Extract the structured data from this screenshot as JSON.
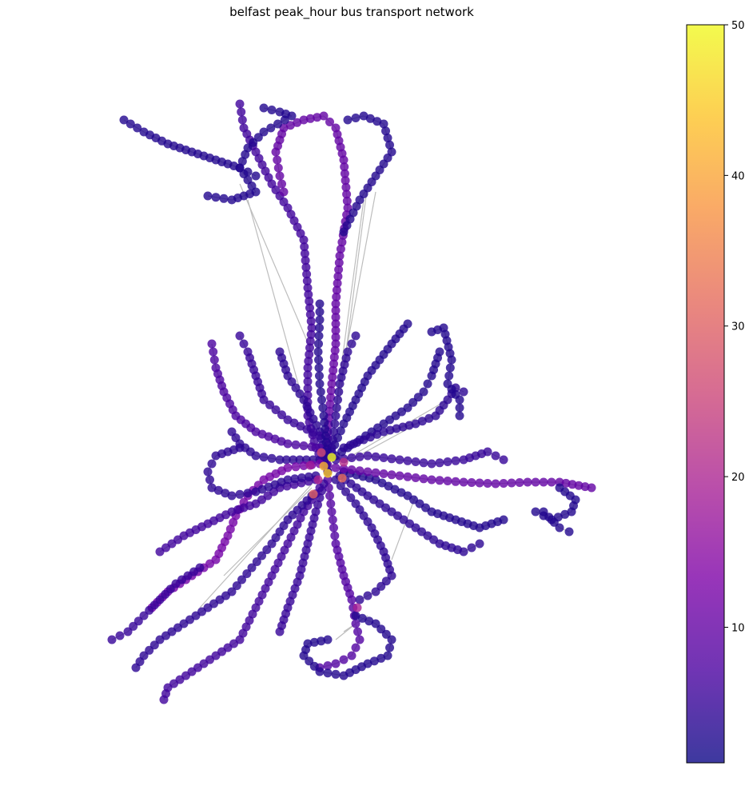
{
  "title": "belfast peak_hour bus transport network",
  "colorbar": {
    "colormap": "plasma",
    "min": 1,
    "max": 50,
    "ticks": [
      10,
      20,
      30,
      40,
      50
    ]
  },
  "network": {
    "node_opacity": 0.8,
    "edge_color": "#bdbdbd",
    "hub": {
      "x": 410,
      "y": 590
    },
    "routes": [
      {
        "id": "nw-branch",
        "level": 6,
        "points": [
          [
            410,
            590
          ],
          [
            395,
            560
          ],
          [
            385,
            520
          ],
          [
            385,
            460
          ],
          [
            390,
            410
          ],
          [
            385,
            360
          ],
          [
            380,
            300
          ],
          [
            360,
            260
          ],
          [
            340,
            230
          ],
          [
            320,
            190
          ],
          [
            305,
            160
          ],
          [
            300,
            130
          ]
        ]
      },
      {
        "id": "north-loop",
        "level": 10,
        "points": [
          [
            410,
            590
          ],
          [
            410,
            540
          ],
          [
            415,
            480
          ],
          [
            420,
            430
          ],
          [
            420,
            380
          ],
          [
            425,
            320
          ],
          [
            435,
            260
          ],
          [
            430,
            200
          ],
          [
            420,
            160
          ],
          [
            405,
            145
          ],
          [
            380,
            150
          ],
          [
            355,
            160
          ],
          [
            345,
            190
          ],
          [
            350,
            220
          ],
          [
            355,
            240
          ]
        ]
      },
      {
        "id": "far-nw",
        "level": 3,
        "points": [
          [
            320,
            220
          ],
          [
            300,
            210
          ],
          [
            270,
            200
          ],
          [
            240,
            190
          ],
          [
            210,
            180
          ],
          [
            180,
            165
          ],
          [
            155,
            150
          ]
        ]
      },
      {
        "id": "north-east-loop",
        "level": 3,
        "points": [
          [
            435,
            150
          ],
          [
            455,
            145
          ],
          [
            480,
            155
          ],
          [
            490,
            190
          ],
          [
            470,
            220
          ],
          [
            450,
            250
          ],
          [
            430,
            290
          ]
        ]
      },
      {
        "id": "north-west-loop2",
        "level": 3,
        "points": [
          [
            330,
            135
          ],
          [
            350,
            140
          ],
          [
            365,
            145
          ],
          [
            330,
            165
          ],
          [
            310,
            185
          ],
          [
            300,
            210
          ],
          [
            320,
            240
          ],
          [
            290,
            250
          ],
          [
            260,
            245
          ]
        ]
      },
      {
        "id": "central-north",
        "level": 4,
        "points": [
          [
            410,
            590
          ],
          [
            400,
            540
          ],
          [
            380,
            500
          ],
          [
            360,
            470
          ],
          [
            350,
            440
          ]
        ]
      },
      {
        "id": "west-north",
        "level": 7,
        "points": [
          [
            400,
            560
          ],
          [
            360,
            555
          ],
          [
            320,
            540
          ],
          [
            295,
            520
          ],
          [
            280,
            490
          ],
          [
            270,
            460
          ],
          [
            265,
            430
          ]
        ]
      },
      {
        "id": "west-north2",
        "level": 5,
        "points": [
          [
            400,
            545
          ],
          [
            360,
            525
          ],
          [
            330,
            500
          ],
          [
            320,
            470
          ],
          [
            310,
            440
          ],
          [
            300,
            420
          ]
        ]
      },
      {
        "id": "wnw",
        "level": 4,
        "points": [
          [
            400,
            575
          ],
          [
            350,
            575
          ],
          [
            320,
            570
          ],
          [
            300,
            555
          ],
          [
            290,
            540
          ]
        ]
      },
      {
        "id": "west-main",
        "level": 12,
        "points": [
          [
            400,
            580
          ],
          [
            360,
            585
          ],
          [
            330,
            600
          ],
          [
            310,
            620
          ],
          [
            295,
            645
          ],
          [
            285,
            670
          ],
          [
            270,
            700
          ],
          [
            240,
            720
          ],
          [
            210,
            740
          ],
          [
            190,
            760
          ]
        ]
      },
      {
        "id": "wsw",
        "level": 6,
        "points": [
          [
            395,
            600
          ],
          [
            350,
            610
          ],
          [
            320,
            630
          ],
          [
            290,
            640
          ],
          [
            260,
            655
          ],
          [
            230,
            670
          ],
          [
            200,
            690
          ]
        ]
      },
      {
        "id": "west-south",
        "level": 4,
        "points": [
          [
            395,
            595
          ],
          [
            360,
            600
          ],
          [
            320,
            615
          ],
          [
            290,
            620
          ],
          [
            265,
            610
          ],
          [
            260,
            590
          ],
          [
            270,
            570
          ],
          [
            300,
            560
          ]
        ]
      },
      {
        "id": "sw-main",
        "level": 6,
        "points": [
          [
            400,
            610
          ],
          [
            380,
            640
          ],
          [
            360,
            680
          ],
          [
            340,
            720
          ],
          [
            320,
            760
          ],
          [
            300,
            800
          ],
          [
            270,
            820
          ],
          [
            240,
            840
          ],
          [
            210,
            860
          ],
          [
            205,
            875
          ]
        ]
      },
      {
        "id": "sw-2",
        "level": 4,
        "points": [
          [
            390,
            620
          ],
          [
            360,
            650
          ],
          [
            340,
            680
          ],
          [
            315,
            710
          ],
          [
            290,
            740
          ],
          [
            260,
            760
          ],
          [
            230,
            780
          ],
          [
            200,
            800
          ],
          [
            180,
            820
          ],
          [
            170,
            835
          ]
        ]
      },
      {
        "id": "far-sw",
        "level": 5,
        "points": [
          [
            250,
            710
          ],
          [
            220,
            730
          ],
          [
            200,
            750
          ],
          [
            180,
            770
          ],
          [
            160,
            790
          ],
          [
            140,
            800
          ]
        ]
      },
      {
        "id": "south-main",
        "level": 8,
        "points": [
          [
            410,
            600
          ],
          [
            415,
            640
          ],
          [
            420,
            680
          ],
          [
            430,
            720
          ],
          [
            440,
            750
          ],
          [
            445,
            780
          ],
          [
            450,
            800
          ],
          [
            440,
            820
          ],
          [
            420,
            830
          ],
          [
            400,
            835
          ]
        ]
      },
      {
        "id": "south-loop",
        "level": 3,
        "points": [
          [
            445,
            770
          ],
          [
            470,
            780
          ],
          [
            490,
            800
          ],
          [
            485,
            820
          ],
          [
            460,
            830
          ],
          [
            430,
            845
          ],
          [
            400,
            840
          ],
          [
            380,
            820
          ],
          [
            385,
            805
          ],
          [
            410,
            800
          ]
        ]
      },
      {
        "id": "south-2",
        "level": 5,
        "points": [
          [
            405,
            605
          ],
          [
            395,
            640
          ],
          [
            385,
            680
          ],
          [
            375,
            720
          ],
          [
            360,
            760
          ],
          [
            350,
            790
          ]
        ]
      },
      {
        "id": "sse",
        "level": 4,
        "points": [
          [
            420,
            600
          ],
          [
            445,
            630
          ],
          [
            465,
            660
          ],
          [
            480,
            690
          ],
          [
            490,
            720
          ],
          [
            470,
            740
          ],
          [
            450,
            750
          ]
        ]
      },
      {
        "id": "se-1",
        "level": 4,
        "points": [
          [
            425,
            595
          ],
          [
            460,
            620
          ],
          [
            490,
            640
          ],
          [
            520,
            660
          ],
          [
            550,
            680
          ],
          [
            580,
            690
          ],
          [
            600,
            680
          ]
        ]
      },
      {
        "id": "se-2",
        "level": 3,
        "points": [
          [
            430,
            590
          ],
          [
            470,
            600
          ],
          [
            510,
            620
          ],
          [
            540,
            640
          ],
          [
            570,
            650
          ],
          [
            600,
            660
          ],
          [
            630,
            650
          ]
        ]
      },
      {
        "id": "east-main",
        "level": 10,
        "points": [
          [
            420,
            585
          ],
          [
            460,
            590
          ],
          [
            500,
            595
          ],
          [
            540,
            600
          ],
          [
            580,
            603
          ],
          [
            620,
            605
          ],
          [
            660,
            603
          ],
          [
            700,
            603
          ],
          [
            740,
            610
          ]
        ]
      },
      {
        "id": "east-2",
        "level": 3,
        "points": [
          [
            700,
            610
          ],
          [
            720,
            625
          ],
          [
            715,
            640
          ],
          [
            690,
            650
          ],
          [
            670,
            640
          ]
        ]
      },
      {
        "id": "east-3",
        "level": 3,
        "points": [
          [
            680,
            640
          ],
          [
            700,
            660
          ],
          [
            712,
            665
          ]
        ]
      },
      {
        "id": "ene-1",
        "level": 5,
        "points": [
          [
            420,
            575
          ],
          [
            460,
            570
          ],
          [
            500,
            575
          ],
          [
            540,
            580
          ],
          [
            580,
            575
          ],
          [
            610,
            565
          ],
          [
            630,
            575
          ]
        ]
      },
      {
        "id": "ene-2",
        "level": 3,
        "points": [
          [
            420,
            570
          ],
          [
            450,
            550
          ],
          [
            480,
            530
          ],
          [
            510,
            510
          ],
          [
            530,
            490
          ],
          [
            540,
            470
          ],
          [
            550,
            440
          ]
        ]
      },
      {
        "id": "ne-1",
        "level": 3,
        "points": [
          [
            415,
            565
          ],
          [
            430,
            530
          ],
          [
            445,
            500
          ],
          [
            460,
            470
          ],
          [
            475,
            450
          ],
          [
            490,
            430
          ],
          [
            510,
            405
          ]
        ]
      },
      {
        "id": "ne-2",
        "level": 4,
        "points": [
          [
            430,
            560
          ],
          [
            480,
            540
          ],
          [
            520,
            530
          ],
          [
            545,
            520
          ],
          [
            560,
            500
          ],
          [
            570,
            485
          ],
          [
            580,
            490
          ]
        ]
      },
      {
        "id": "ne-loop",
        "level": 3,
        "points": [
          [
            540,
            415
          ],
          [
            555,
            410
          ],
          [
            565,
            450
          ],
          [
            560,
            480
          ],
          [
            575,
            500
          ],
          [
            575,
            520
          ]
        ]
      },
      {
        "id": "nne",
        "level": 4,
        "points": [
          [
            415,
            560
          ],
          [
            420,
            520
          ],
          [
            425,
            480
          ],
          [
            435,
            440
          ],
          [
            445,
            420
          ]
        ]
      },
      {
        "id": "north-2",
        "level": 3,
        "points": [
          [
            410,
            570
          ],
          [
            405,
            520
          ],
          [
            400,
            480
          ],
          [
            398,
            440
          ],
          [
            400,
            400
          ],
          [
            400,
            380
          ]
        ]
      }
    ],
    "long_edges": [
      [
        [
          310,
          250
        ],
        [
          395,
          560
        ]
      ],
      [
        [
          455,
          250
        ],
        [
          420,
          510
        ]
      ],
      [
        [
          460,
          230
        ],
        [
          425,
          500
        ]
      ],
      [
        [
          470,
          240
        ],
        [
          418,
          520
        ]
      ],
      [
        [
          300,
          230
        ],
        [
          390,
          440
        ]
      ],
      [
        [
          540,
          520
        ],
        [
          430,
          580
        ]
      ],
      [
        [
          560,
          500
        ],
        [
          440,
          570
        ]
      ],
      [
        [
          280,
          720
        ],
        [
          390,
          610
        ]
      ],
      [
        [
          250,
          760
        ],
        [
          395,
          600
        ]
      ],
      [
        [
          430,
          790
        ],
        [
          460,
          770
        ]
      ],
      [
        [
          420,
          800
        ],
        [
          445,
          780
        ]
      ],
      [
        [
          520,
          620
        ],
        [
          490,
          700
        ]
      ]
    ],
    "hot_nodes": [
      {
        "x": 415,
        "y": 572,
        "value": 50
      },
      {
        "x": 410,
        "y": 592,
        "value": 45
      },
      {
        "x": 405,
        "y": 583,
        "value": 42
      },
      {
        "x": 428,
        "y": 598,
        "value": 32
      },
      {
        "x": 392,
        "y": 618,
        "value": 30
      },
      {
        "x": 402,
        "y": 566,
        "value": 26
      },
      {
        "x": 430,
        "y": 578,
        "value": 22
      },
      {
        "x": 398,
        "y": 600,
        "value": 20
      },
      {
        "x": 447,
        "y": 760,
        "value": 19
      },
      {
        "x": 388,
        "y": 582,
        "value": 18
      }
    ]
  }
}
